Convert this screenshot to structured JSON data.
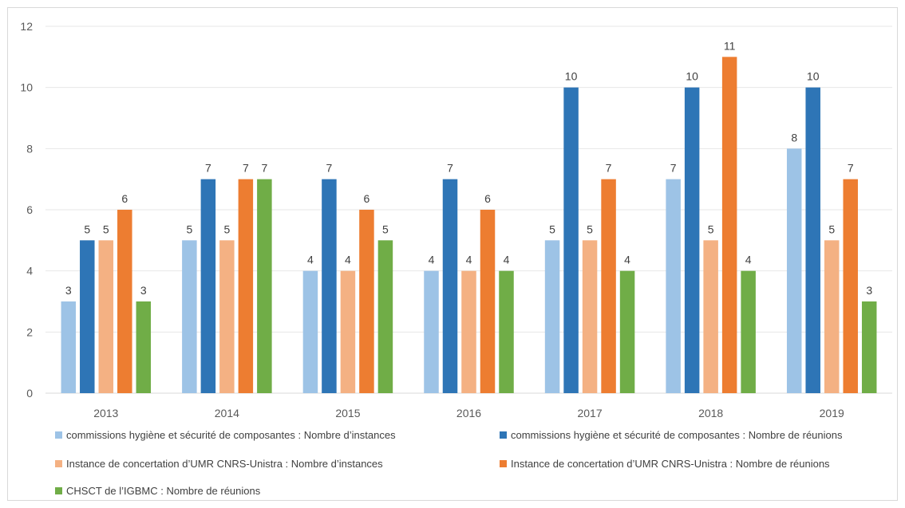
{
  "chart_data": {
    "type": "bar",
    "title": "",
    "xlabel": "",
    "ylabel": "",
    "categories": [
      "2013",
      "2014",
      "2015",
      "2016",
      "2017",
      "2018",
      "2019"
    ],
    "ylim": [
      0,
      12
    ],
    "yticks": [
      0,
      2,
      4,
      6,
      8,
      10,
      12
    ],
    "grid": true,
    "legend_position": "bottom",
    "series": [
      {
        "name": "commissions hygiène et sécurité de composantes : Nombre d’instances",
        "color": "#9dc3e6",
        "values": [
          3,
          5,
          4,
          4,
          5,
          7,
          8
        ]
      },
      {
        "name": "commissions hygiène et sécurité de composantes : Nombre de réunions",
        "color": "#2e75b6",
        "values": [
          5,
          7,
          7,
          7,
          10,
          10,
          10
        ]
      },
      {
        "name": "Instance de concertation d’UMR CNRS-Unistra : Nombre d’instances",
        "color": "#f4b183",
        "values": [
          5,
          5,
          4,
          4,
          5,
          5,
          5
        ]
      },
      {
        "name": "Instance de concertation d’UMR CNRS-Unistra : Nombre de réunions",
        "color": "#ed7d31",
        "values": [
          6,
          7,
          6,
          6,
          7,
          11,
          7
        ]
      },
      {
        "name": "CHSCT de l’IGBMC : Nombre de réunions",
        "color": "#70ad47",
        "values": [
          3,
          7,
          5,
          4,
          4,
          4,
          3
        ]
      }
    ]
  }
}
